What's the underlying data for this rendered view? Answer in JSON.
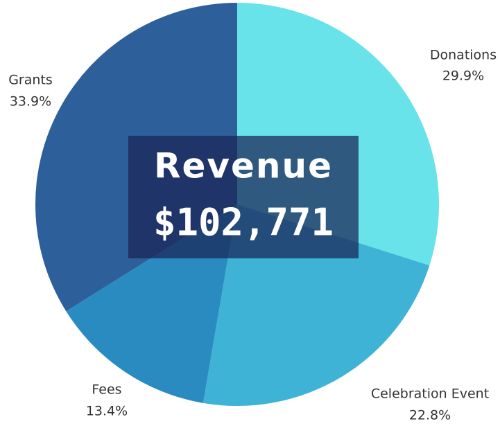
{
  "chart_data": {
    "type": "pie",
    "title": "Revenue",
    "center_label": "$102,771",
    "categories": [
      "Donations",
      "Celebration Event",
      "Fees",
      "Grants"
    ],
    "values": [
      29.9,
      22.8,
      13.4,
      33.9
    ],
    "value_labels": [
      "29.9%",
      "22.8%",
      "13.4%",
      "33.9%"
    ],
    "colors": [
      "#67e3e9",
      "#3fb3d6",
      "#2a8bc0",
      "#2d5f9a"
    ]
  }
}
